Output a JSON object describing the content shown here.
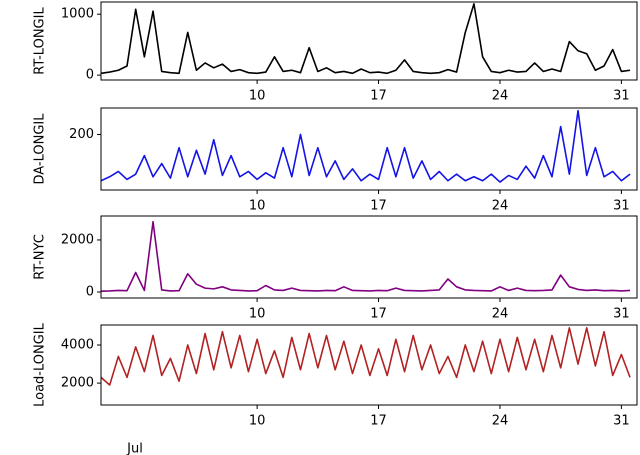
{
  "chart_data": [
    {
      "type": "line",
      "ylabel": "RT-LONGIL",
      "color": "#000000",
      "x": [
        1,
        1.5,
        2,
        2.5,
        3,
        3.5,
        4,
        4.5,
        5,
        5.5,
        6,
        6.5,
        7,
        7.5,
        8,
        8.5,
        9,
        9.5,
        10,
        10.5,
        11,
        11.5,
        12,
        12.5,
        13,
        13.5,
        14,
        14.5,
        15,
        15.5,
        16,
        16.5,
        17,
        17.5,
        18,
        18.5,
        19,
        19.5,
        20,
        20.5,
        21,
        21.5,
        22,
        22.5,
        23,
        23.5,
        24,
        24.5,
        25,
        25.5,
        26,
        26.5,
        27,
        27.5,
        28,
        28.5,
        29,
        29.5,
        30,
        30.5,
        31,
        31.5
      ],
      "values": [
        30,
        50,
        80,
        150,
        1080,
        300,
        1050,
        60,
        40,
        30,
        700,
        80,
        200,
        120,
        180,
        60,
        90,
        40,
        30,
        50,
        300,
        60,
        80,
        40,
        450,
        60,
        120,
        40,
        60,
        30,
        100,
        40,
        50,
        30,
        80,
        250,
        60,
        40,
        30,
        40,
        90,
        50,
        700,
        1170,
        300,
        60,
        40,
        80,
        50,
        60,
        200,
        60,
        100,
        60,
        550,
        400,
        350,
        80,
        150,
        420,
        60,
        80
      ],
      "xlim": [
        1,
        31.9
      ],
      "xticks": [
        10,
        17,
        24,
        31
      ],
      "ylim": [
        -80,
        1200
      ],
      "yticks": [
        0,
        1000
      ]
    },
    {
      "type": "line",
      "ylabel": "DA-LONGIL",
      "color": "#1414e6",
      "x": [
        1,
        1.5,
        2,
        2.5,
        3,
        3.5,
        4,
        4.5,
        5,
        5.5,
        6,
        6.5,
        7,
        7.5,
        8,
        8.5,
        9,
        9.5,
        10,
        10.5,
        11,
        11.5,
        12,
        12.5,
        13,
        13.5,
        14,
        14.5,
        15,
        15.5,
        16,
        16.5,
        17,
        17.5,
        18,
        18.5,
        19,
        19.5,
        20,
        20.5,
        21,
        21.5,
        22,
        22.5,
        23,
        23.5,
        24,
        24.5,
        25,
        25.5,
        26,
        26.5,
        27,
        27.5,
        28,
        28.5,
        29,
        29.5,
        30,
        30.5,
        31,
        31.5
      ],
      "values": [
        25,
        40,
        60,
        30,
        50,
        120,
        40,
        90,
        35,
        150,
        40,
        140,
        50,
        180,
        45,
        120,
        40,
        60,
        30,
        55,
        35,
        150,
        40,
        200,
        45,
        150,
        40,
        100,
        30,
        70,
        25,
        50,
        30,
        150,
        40,
        150,
        35,
        100,
        30,
        60,
        25,
        50,
        25,
        40,
        25,
        50,
        20,
        45,
        30,
        80,
        35,
        120,
        40,
        230,
        50,
        290,
        45,
        150,
        40,
        60,
        25,
        50
      ],
      "xlim": [
        1,
        31.9
      ],
      "xticks": [
        10,
        17,
        24,
        31
      ],
      "ylim": [
        -10,
        300
      ],
      "yticks": [
        200
      ]
    },
    {
      "type": "line",
      "ylabel": "RT-NYC",
      "color": "#800080",
      "x": [
        1,
        1.5,
        2,
        2.5,
        3,
        3.5,
        4,
        4.5,
        5,
        5.5,
        6,
        6.5,
        7,
        7.5,
        8,
        8.5,
        9,
        9.5,
        10,
        10.5,
        11,
        11.5,
        12,
        12.5,
        13,
        13.5,
        14,
        14.5,
        15,
        15.5,
        16,
        16.5,
        17,
        17.5,
        18,
        18.5,
        19,
        19.5,
        20,
        20.5,
        21,
        21.5,
        22,
        22.5,
        23,
        23.5,
        24,
        24.5,
        25,
        25.5,
        26,
        26.5,
        27,
        27.5,
        28,
        28.5,
        29,
        29.5,
        30,
        30.5,
        31,
        31.5
      ],
      "values": [
        30,
        40,
        60,
        50,
        750,
        60,
        2700,
        80,
        40,
        50,
        700,
        300,
        150,
        120,
        200,
        80,
        60,
        40,
        50,
        250,
        80,
        60,
        150,
        60,
        50,
        40,
        60,
        50,
        200,
        60,
        50,
        40,
        60,
        50,
        150,
        60,
        50,
        40,
        60,
        80,
        500,
        200,
        80,
        60,
        50,
        40,
        200,
        60,
        150,
        60,
        50,
        60,
        80,
        650,
        200,
        100,
        60,
        80,
        50,
        60,
        40,
        60
      ],
      "xlim": [
        1,
        31.9
      ],
      "xticks": [
        10,
        17,
        24,
        31
      ],
      "ylim": [
        -230,
        2920
      ],
      "yticks": [
        0,
        2000
      ]
    },
    {
      "type": "line",
      "ylabel": "Load-LONGIL",
      "color": "#b22222",
      "xlabel": "Jul",
      "x": [
        1,
        1.5,
        2,
        2.5,
        3,
        3.5,
        4,
        4.5,
        5,
        5.5,
        6,
        6.5,
        7,
        7.5,
        8,
        8.5,
        9,
        9.5,
        10,
        10.5,
        11,
        11.5,
        12,
        12.5,
        13,
        13.5,
        14,
        14.5,
        15,
        15.5,
        16,
        16.5,
        17,
        17.5,
        18,
        18.5,
        19,
        19.5,
        20,
        20.5,
        21,
        21.5,
        22,
        22.5,
        23,
        23.5,
        24,
        24.5,
        25,
        25.5,
        26,
        26.5,
        27,
        27.5,
        28,
        28.5,
        29,
        29.5,
        30,
        30.5,
        31,
        31.5
      ],
      "values": [
        2300,
        1900,
        3400,
        2300,
        3900,
        2600,
        4500,
        2400,
        3300,
        2100,
        4000,
        2500,
        4600,
        2700,
        4700,
        2800,
        4500,
        2600,
        4300,
        2500,
        3700,
        2300,
        4400,
        2700,
        4600,
        2800,
        4500,
        2700,
        4200,
        2500,
        4000,
        2400,
        3800,
        2400,
        4300,
        2600,
        4500,
        2700,
        4000,
        2500,
        3400,
        2300,
        4000,
        2600,
        4200,
        2500,
        4300,
        2600,
        4400,
        2700,
        4300,
        2600,
        4500,
        2800,
        4900,
        3000,
        4900,
        2900,
        4700,
        2400,
        3500,
        2300
      ],
      "xlim": [
        1,
        31.9
      ],
      "xticks": [
        10,
        17,
        24,
        31
      ],
      "ylim": [
        850,
        5050
      ],
      "yticks": [
        2000,
        4000
      ]
    }
  ]
}
